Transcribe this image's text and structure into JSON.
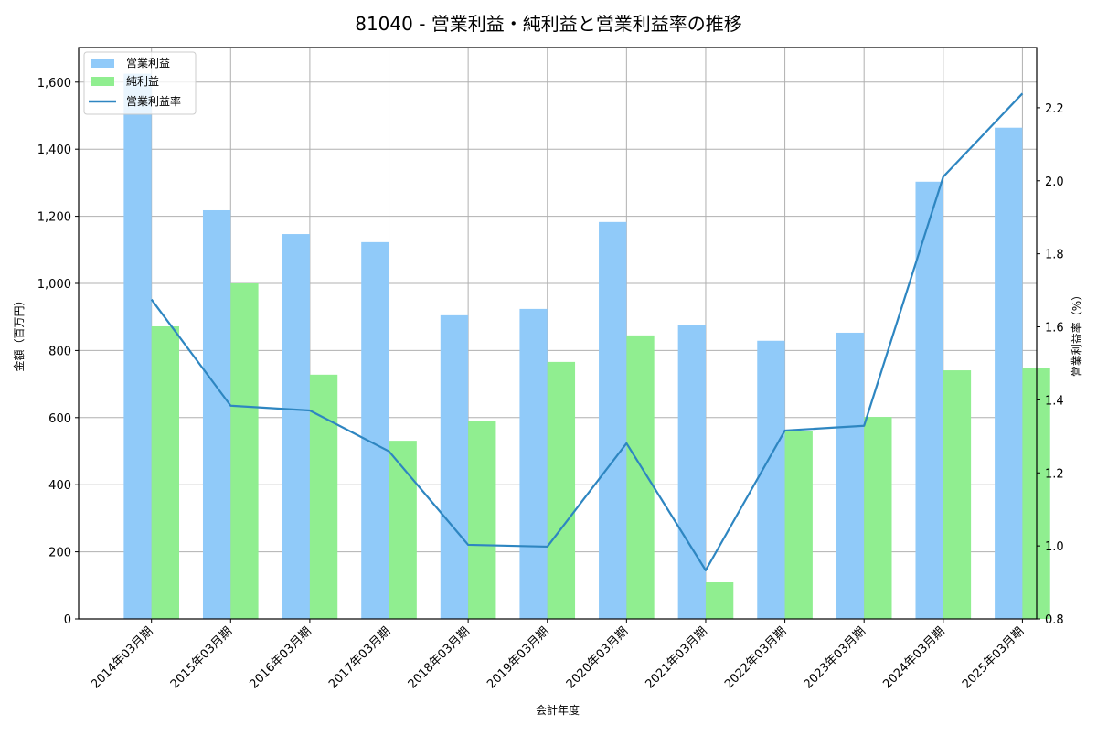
{
  "chart_data": {
    "type": "bar",
    "title": "81040 - 営業利益・純利益と営業利益率の推移",
    "xlabel": "会計年度",
    "ylabel": "金額（百万円）",
    "y2label": "営業利益率（%）",
    "categories": [
      "2014年03月期",
      "2015年03月期",
      "2016年03月期",
      "2017年03月期",
      "2018年03月期",
      "2019年03月期",
      "2020年03月期",
      "2021年03月期",
      "2022年03月期",
      "2023年03月期",
      "2024年03月期",
      "2025年03月期"
    ],
    "series": [
      {
        "name": "営業利益",
        "kind": "bar",
        "axis": "left",
        "color": "#90CAF9",
        "values": [
          1625,
          1218,
          1147,
          1123,
          905,
          924,
          1183,
          875,
          829,
          853,
          1303,
          1464
        ]
      },
      {
        "name": "純利益",
        "kind": "bar",
        "axis": "left",
        "color": "#90EE90",
        "values": [
          872,
          1000,
          728,
          531,
          591,
          766,
          845,
          109,
          559,
          602,
          741,
          747
        ]
      },
      {
        "name": "営業利益率",
        "kind": "line",
        "axis": "right",
        "color": "#2E86C1",
        "values": [
          1.675,
          1.384,
          1.371,
          1.259,
          1.003,
          0.998,
          1.281,
          0.933,
          1.316,
          1.329,
          2.011,
          2.239
        ]
      }
    ],
    "ylim": [
      0,
      1703
    ],
    "y2lim": [
      0.8,
      2.365
    ],
    "yticks": [
      0,
      200,
      400,
      600,
      800,
      1000,
      1200,
      1400,
      1600
    ],
    "ytick_labels": [
      "0",
      "200",
      "400",
      "600",
      "800",
      "1,000",
      "1,200",
      "1,400",
      "1,600"
    ],
    "y2ticks": [
      0.8,
      1.0,
      1.2,
      1.4,
      1.6,
      1.8,
      2.0,
      2.2
    ],
    "y2tick_labels": [
      "0.8",
      "1.0",
      "1.2",
      "1.4",
      "1.6",
      "1.8",
      "2.0",
      "2.2"
    ],
    "grid": true,
    "legend_position": "upper left"
  }
}
